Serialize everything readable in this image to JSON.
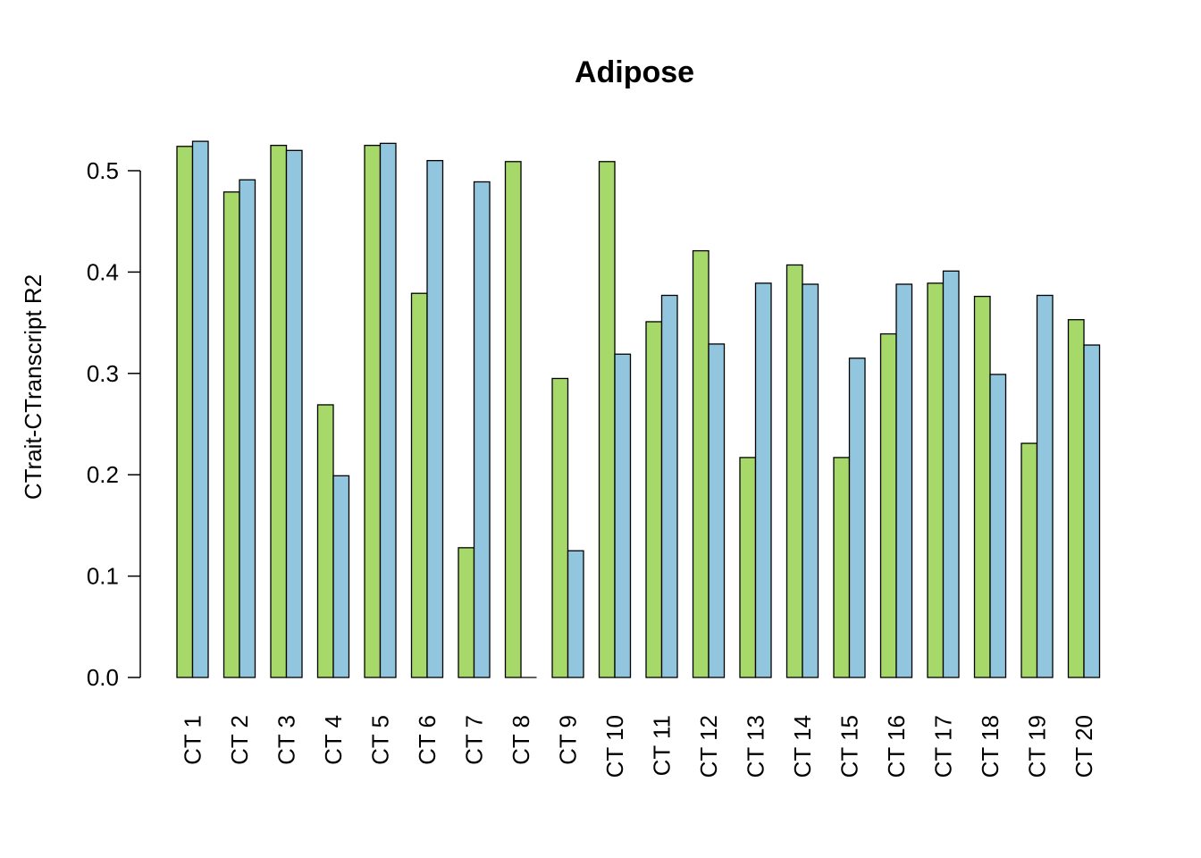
{
  "chart_data": {
    "type": "bar",
    "title": "Adipose",
    "xlabel": "",
    "ylabel": "CTrait-CTranscript R2",
    "ylim": [
      0,
      0.53
    ],
    "yticks": [
      "0.0",
      "0.1",
      "0.2",
      "0.3",
      "0.4",
      "0.5"
    ],
    "categories": [
      "CT 1",
      "CT 2",
      "CT 3",
      "CT 4",
      "CT 5",
      "CT 6",
      "CT 7",
      "CT 8",
      "CT 9",
      "CT 10",
      "CT 11",
      "CT 12",
      "CT 13",
      "CT 14",
      "CT 15",
      "CT 16",
      "CT 17",
      "CT 18",
      "CT 19",
      "CT 20"
    ],
    "series": [
      {
        "color": "#a6d96a",
        "values": [
          0.524,
          0.479,
          0.525,
          0.269,
          0.525,
          0.379,
          0.128,
          0.509,
          0.295,
          0.509,
          0.351,
          0.421,
          0.217,
          0.407,
          0.217,
          0.339,
          0.389,
          0.376,
          0.231,
          0.353
        ]
      },
      {
        "color": "#92c5de",
        "values": [
          0.529,
          0.491,
          0.52,
          0.199,
          0.527,
          0.51,
          0.489,
          0.0,
          0.125,
          0.319,
          0.377,
          0.329,
          0.389,
          0.388,
          0.315,
          0.388,
          0.401,
          0.299,
          0.377,
          0.328
        ]
      }
    ],
    "grid": false,
    "legend": "none"
  }
}
